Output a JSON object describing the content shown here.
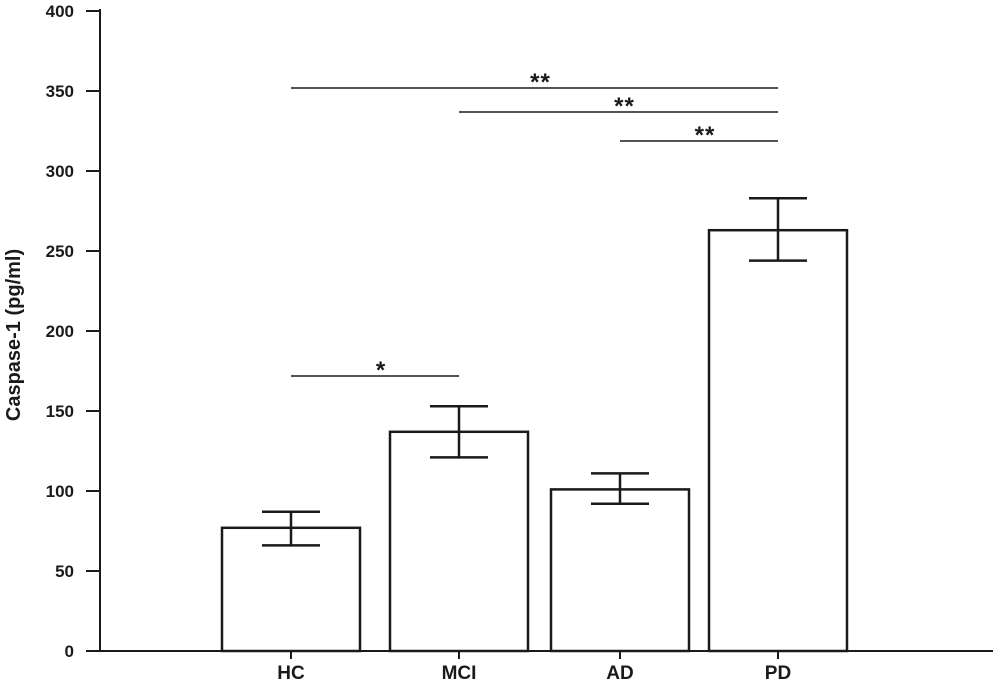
{
  "chart_data": {
    "type": "bar",
    "title": "",
    "xlabel": "",
    "ylabel": "Caspase-1 (pg/ml)",
    "ylim": [
      0,
      400
    ],
    "yticks": [
      0,
      50,
      100,
      150,
      200,
      250,
      300,
      350,
      400
    ],
    "grid": false,
    "categories": [
      "HC",
      "MCI",
      "AD",
      "PD"
    ],
    "values": [
      77,
      137,
      101,
      263
    ],
    "error_upper": [
      87,
      153,
      111,
      283
    ],
    "error_lower": [
      66,
      121,
      92,
      244
    ],
    "significance": [
      {
        "from": "HC",
        "to": "PD",
        "label": "**"
      },
      {
        "from": "MCI",
        "to": "PD",
        "label": "**"
      },
      {
        "from": "AD",
        "to": "PD",
        "label": "**"
      },
      {
        "from": "HC",
        "to": "MCI",
        "label": "*"
      }
    ],
    "colors": {
      "bar_fill": "#ffffff",
      "stroke": "#1a1a1a"
    }
  }
}
